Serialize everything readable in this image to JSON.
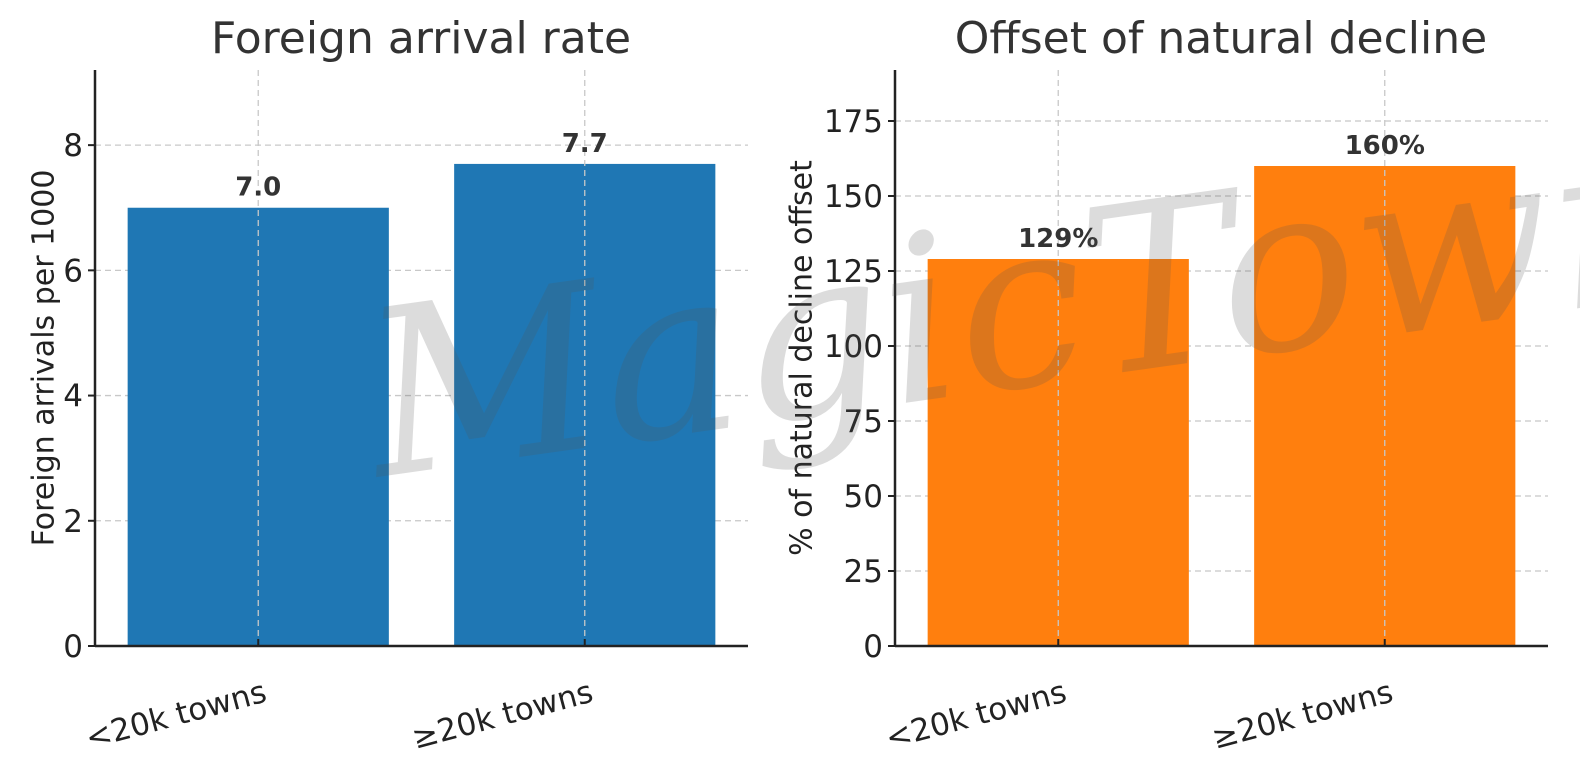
{
  "chart_data": [
    {
      "type": "bar",
      "title": "Foreign arrival rate",
      "ylabel": "Foreign arrivals per 1000",
      "xlabel": "",
      "categories": [
        "<20k towns",
        "≥20k towns"
      ],
      "values": [
        7.0,
        7.7
      ],
      "value_labels": [
        "7.0",
        "7.7"
      ],
      "ylim": [
        0,
        9.2
      ],
      "yticks": [
        0,
        2,
        4,
        6,
        8
      ],
      "color": "#1f77b4",
      "grid": true
    },
    {
      "type": "bar",
      "title": "Offset of natural decline",
      "ylabel": "% of natural decline offset",
      "xlabel": "",
      "categories": [
        "<20k towns",
        "≥20k towns"
      ],
      "values": [
        129,
        160
      ],
      "value_labels": [
        "129%",
        "160%"
      ],
      "ylim": [
        0,
        192
      ],
      "yticks": [
        0,
        25,
        50,
        75,
        100,
        125,
        150,
        175
      ],
      "color": "#ff7f0e",
      "grid": true
    }
  ],
  "watermark": "MagicTowns"
}
